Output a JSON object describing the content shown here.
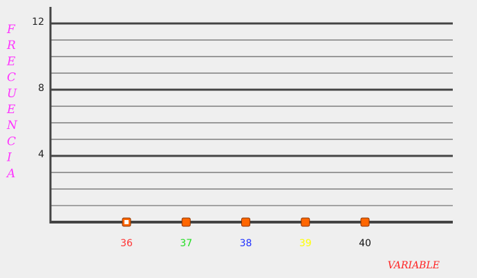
{
  "chart_data": {
    "type": "scatter",
    "xlabel": "VARIABLE",
    "ylabel": "FRECUENCIA",
    "ylim": [
      0,
      12
    ],
    "yticks": [
      "4",
      "8",
      "12"
    ],
    "categories": [
      "36",
      "37",
      "38",
      "39",
      "40"
    ],
    "category_colors": [
      "#ff3333",
      "#22dd22",
      "#2233ff",
      "#ffff00",
      "#111111"
    ],
    "values": [
      0,
      0,
      0,
      0,
      0
    ],
    "grid": true,
    "label_color_y": "#ff33ff",
    "label_color_x": "#ff2222",
    "marker_color": "#ff6600"
  }
}
